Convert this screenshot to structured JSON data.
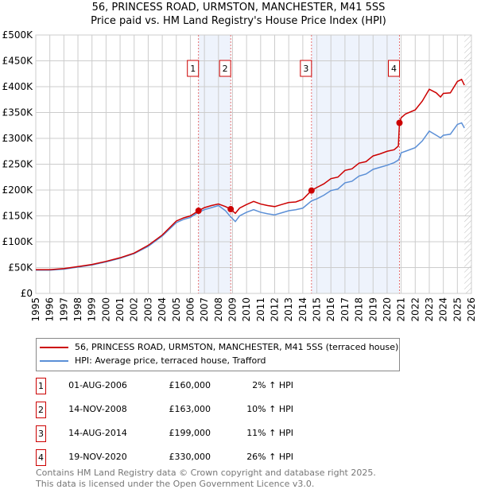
{
  "title": "56, PRINCESS ROAD, URMSTON, MANCHESTER, M41 5SS",
  "subtitle": "Price paid vs. HM Land Registry's House Price Index (HPI)",
  "colors": {
    "property": "#cc0000",
    "hpi": "#5b8fd6",
    "shade": "#eef3fc"
  },
  "chart_data": {
    "type": "line",
    "xlim": [
      1995,
      2026
    ],
    "ylim": [
      0,
      500000
    ],
    "y_ticks": [
      {
        "v": 0,
        "label": "£0"
      },
      {
        "v": 50000,
        "label": "£50K"
      },
      {
        "v": 100000,
        "label": "£100K"
      },
      {
        "v": 150000,
        "label": "£150K"
      },
      {
        "v": 200000,
        "label": "£200K"
      },
      {
        "v": 250000,
        "label": "£250K"
      },
      {
        "v": 300000,
        "label": "£300K"
      },
      {
        "v": 350000,
        "label": "£350K"
      },
      {
        "v": 400000,
        "label": "£400K"
      },
      {
        "v": 450000,
        "label": "£450K"
      },
      {
        "v": 500000,
        "label": "£500K"
      }
    ],
    "x_ticks": [
      "1995",
      "1996",
      "1997",
      "1998",
      "1999",
      "2000",
      "2001",
      "2002",
      "2003",
      "2004",
      "2005",
      "2006",
      "2007",
      "2008",
      "2009",
      "2010",
      "2011",
      "2012",
      "2013",
      "2014",
      "2015",
      "2016",
      "2017",
      "2018",
      "2019",
      "2020",
      "2021",
      "2022",
      "2023",
      "2024",
      "2025",
      "2026"
    ],
    "series": [
      {
        "name": "56, PRINCESS ROAD, URMSTON, MANCHESTER, M41 5SS (terraced house)",
        "color": "#cc0000",
        "x": [
          1995,
          1996,
          1997,
          1998,
          1999,
          2000,
          2001,
          2002,
          2003,
          2004,
          2005,
          2005.5,
          2006,
          2006.58,
          2007,
          2007.5,
          2008,
          2008.5,
          2008.87,
          2009.2,
          2009.5,
          2010,
          2010.5,
          2011,
          2011.5,
          2012,
          2012.5,
          2013,
          2013.5,
          2014,
          2014.62,
          2015,
          2015.5,
          2016,
          2016.5,
          2017,
          2017.5,
          2018,
          2018.5,
          2019,
          2019.5,
          2020,
          2020.5,
          2020.8,
          2020.88,
          2021,
          2021.3,
          2022,
          2022.5,
          2023,
          2023.5,
          2023.8,
          2024,
          2024.5,
          2025,
          2025.3,
          2025.5
        ],
        "y": [
          46000,
          46000,
          48000,
          52000,
          56000,
          62000,
          69000,
          78000,
          93000,
          113000,
          140000,
          146000,
          150000,
          160000,
          166000,
          170000,
          173000,
          168000,
          163000,
          155000,
          165000,
          172000,
          178000,
          173000,
          170000,
          168000,
          172000,
          176000,
          177000,
          182000,
          199000,
          205000,
          212000,
          222000,
          225000,
          238000,
          241000,
          252000,
          255000,
          266000,
          270000,
          275000,
          278000,
          285000,
          330000,
          340000,
          347000,
          355000,
          372000,
          395000,
          388000,
          380000,
          387000,
          388000,
          410000,
          414000,
          403000
        ]
      },
      {
        "name": "HPI: Average price, terraced house, Trafford",
        "color": "#5b8fd6",
        "x": [
          1995,
          1996,
          1997,
          1998,
          1999,
          2000,
          2001,
          2002,
          2003,
          2004,
          2005,
          2005.5,
          2006,
          2006.58,
          2007,
          2007.5,
          2008,
          2008.5,
          2008.87,
          2009.2,
          2009.5,
          2010,
          2010.5,
          2011,
          2011.5,
          2012,
          2012.5,
          2013,
          2013.5,
          2014,
          2014.62,
          2015,
          2015.5,
          2016,
          2016.5,
          2017,
          2017.5,
          2018,
          2018.5,
          2019,
          2019.5,
          2020,
          2020.5,
          2020.8,
          2020.88,
          2021,
          2021.3,
          2022,
          2022.5,
          2023,
          2023.5,
          2023.8,
          2024,
          2024.5,
          2025,
          2025.3,
          2025.5
        ],
        "y": [
          45000,
          45000,
          47000,
          51000,
          55000,
          61000,
          68000,
          77000,
          91000,
          111000,
          137000,
          143000,
          147000,
          157000,
          162000,
          166000,
          170000,
          160000,
          148000,
          139000,
          150000,
          157000,
          162000,
          157000,
          154000,
          152000,
          156000,
          160000,
          162000,
          165000,
          179000,
          183000,
          190000,
          199000,
          202000,
          214000,
          217000,
          227000,
          231000,
          240000,
          244000,
          248000,
          253000,
          258000,
          262000,
          272000,
          275000,
          282000,
          295000,
          314000,
          306000,
          301000,
          306000,
          308000,
          327000,
          330000,
          320000
        ]
      }
    ],
    "sales": [
      {
        "label": "1",
        "x": 2006.58,
        "y": 160000
      },
      {
        "label": "2",
        "x": 2008.87,
        "y": 163000
      },
      {
        "label": "3",
        "x": 2014.62,
        "y": 199000
      },
      {
        "label": "4",
        "x": 2020.88,
        "y": 330000
      }
    ],
    "shaded": [
      [
        2006.58,
        2008.87
      ],
      [
        2014.62,
        2020.88
      ]
    ],
    "hatched_from": 2025.5
  },
  "legend": {
    "property": "56, PRINCESS ROAD, URMSTON, MANCHESTER, M41 5SS (terraced house)",
    "hpi": "HPI: Average price, terraced house, Trafford"
  },
  "table": [
    {
      "num": "1",
      "date": "01-AUG-2006",
      "price": "£160,000",
      "hpi": "2% ↑ HPI"
    },
    {
      "num": "2",
      "date": "14-NOV-2008",
      "price": "£163,000",
      "hpi": "10% ↑ HPI"
    },
    {
      "num": "3",
      "date": "14-AUG-2014",
      "price": "£199,000",
      "hpi": "11% ↑ HPI"
    },
    {
      "num": "4",
      "date": "19-NOV-2020",
      "price": "£330,000",
      "hpi": "26% ↑ HPI"
    }
  ],
  "footer": [
    "Contains HM Land Registry data © Crown copyright and database right 2025.",
    "This data is licensed under the Open Government Licence v3.0."
  ]
}
